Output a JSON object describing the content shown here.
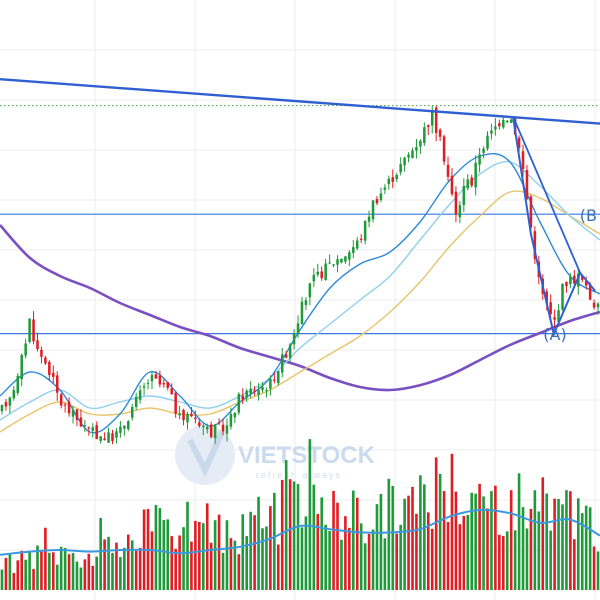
{
  "watermark": {
    "brand": "VIETSTOCK",
    "tagline": "refresh always"
  },
  "chart_data": {
    "type": "candlestick",
    "grid": true,
    "legend": "none",
    "price_ylim": [
      0,
      100
    ],
    "volume_ylim": [
      0,
      100
    ],
    "wave_labels": [
      {
        "text": "(A)",
        "x": 92.5,
        "y": 43.3
      },
      {
        "text": "(B",
        "x": 99.5,
        "y": 63.2
      }
    ],
    "colors": {
      "up": "#1f9a3a",
      "down": "#e11d24",
      "ma_short": "#2e8bd8",
      "ma_mid": "#8fd0ef",
      "ma_long": "#e8c46a",
      "ma_200": "#7a4fc1",
      "trendline": "#2f5fd0",
      "horizontal_level": "#3a78e0",
      "resistance_dotted": "#3f9b49",
      "volume_ma": "#3a98e0"
    },
    "horizontal_levels": [
      {
        "name": "upper",
        "y": 64.3
      },
      {
        "name": "lower",
        "y": 44.4
      },
      {
        "name": "dotted",
        "y": 82.4
      }
    ],
    "trendline": {
      "x": [
        0,
        100
      ],
      "y": [
        86.8,
        79.4
      ]
    },
    "wave_path": {
      "x": [
        85.5,
        88.5,
        92.3,
        96.7,
        99.2
      ],
      "y": [
        80.6,
        60.9,
        44.3,
        54.5,
        51.5
      ]
    },
    "ma200": {
      "x": [
        0,
        5,
        10,
        15,
        20,
        25,
        30,
        35,
        40,
        45,
        50,
        55,
        60,
        65,
        70,
        75,
        80,
        85,
        90,
        95,
        100
      ],
      "y": [
        62.5,
        57,
        54,
        52,
        49.5,
        47.5,
        45.5,
        44,
        42,
        40.5,
        39,
        37,
        35.5,
        35,
        35.8,
        37.5,
        40,
        42.5,
        44.5,
        46.5,
        48
      ]
    },
    "ma_mid": {
      "x": [
        0,
        5,
        10,
        15,
        20,
        25,
        30,
        35,
        40,
        45,
        50,
        55,
        60,
        65,
        70,
        75,
        80,
        85,
        90,
        95,
        100
      ],
      "y": [
        30,
        33,
        35,
        32,
        33,
        34,
        33,
        32,
        34,
        37,
        42,
        46,
        50,
        54,
        60,
        66,
        71,
        73,
        69,
        64,
        60
      ]
    },
    "ma_long": {
      "x": [
        0,
        5,
        10,
        15,
        20,
        25,
        30,
        35,
        40,
        45,
        50,
        55,
        60,
        65,
        70,
        75,
        80,
        85,
        90,
        95,
        100
      ],
      "y": [
        28,
        31,
        33,
        31,
        31,
        32,
        31,
        31,
        33,
        35,
        38,
        41,
        44,
        48,
        53,
        59,
        64,
        68,
        67,
        64,
        61
      ]
    },
    "ma_short": {
      "x": [
        0,
        5,
        10,
        15,
        20,
        25,
        30,
        35,
        40,
        45,
        50,
        55,
        60,
        65,
        70,
        75,
        80,
        85,
        90,
        95,
        100
      ],
      "y": [
        34,
        38,
        35,
        28,
        31,
        38,
        34,
        29,
        33,
        37,
        45,
        52,
        56,
        58,
        63,
        70,
        74,
        73,
        63,
        54,
        51
      ]
    },
    "price_anchors": {
      "x": [
        0,
        3,
        5,
        6,
        8,
        10,
        13,
        15,
        18,
        20,
        22,
        25,
        28,
        30,
        32,
        35,
        38,
        40,
        42,
        45,
        48,
        50,
        52,
        55,
        58,
        60,
        62,
        65,
        68,
        70,
        72,
        74,
        76,
        78,
        78.5,
        80,
        82,
        84,
        85.5,
        87,
        88.5,
        90,
        92.3,
        94,
        96.7,
        98,
        100
      ],
      "y": [
        31,
        37,
        47,
        42,
        39,
        33,
        30,
        28,
        27,
        28,
        32,
        37,
        35,
        30,
        31,
        28,
        29,
        34,
        35,
        36,
        42,
        48,
        53,
        56,
        58,
        60,
        66,
        70,
        74,
        77,
        81,
        74,
        64,
        71,
        69,
        75,
        78,
        81,
        80,
        73,
        62,
        52,
        46,
        53,
        54,
        51,
        48
      ]
    },
    "volume_anchors": {
      "x": [
        0,
        5,
        10,
        15,
        20,
        25,
        30,
        35,
        40,
        45,
        50,
        55,
        60,
        65,
        70,
        75,
        78,
        80,
        85,
        90,
        95,
        100
      ],
      "y": [
        16,
        22,
        26,
        23,
        28,
        42,
        44,
        42,
        36,
        48,
        56,
        52,
        48,
        56,
        60,
        66,
        72,
        58,
        62,
        56,
        48,
        40
      ]
    },
    "volume_ma": {
      "x": [
        0,
        5,
        10,
        15,
        20,
        25,
        30,
        35,
        40,
        45,
        50,
        55,
        60,
        65,
        70,
        75,
        80,
        85,
        90,
        95,
        100
      ],
      "y": [
        22,
        24,
        25,
        24,
        25,
        25,
        23,
        25,
        27,
        32,
        40,
        38,
        36,
        36,
        38,
        46,
        50,
        48,
        42,
        44,
        34
      ]
    },
    "candle_count": 152
  }
}
